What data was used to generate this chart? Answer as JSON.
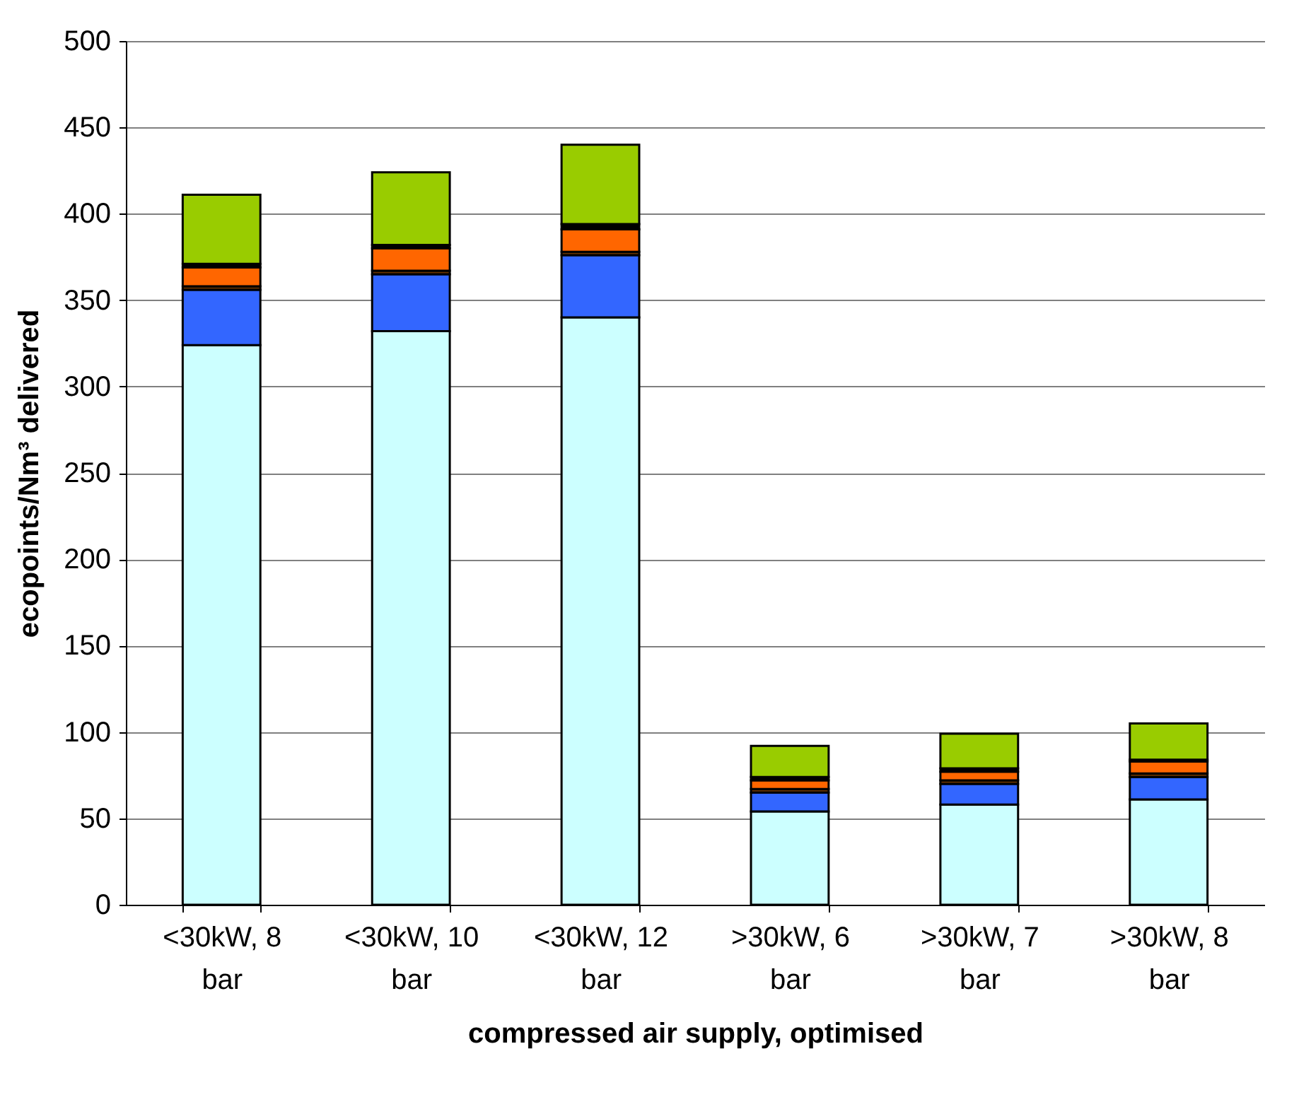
{
  "chart_data": {
    "type": "bar",
    "stacked": true,
    "xlabel": "compressed air supply, optimised",
    "ylabel": "ecopoints/Nm³ delivered",
    "categories": [
      "<30kW, 8 bar",
      "<30kW, 10 bar",
      "<30kW, 12 bar",
      ">30kW, 6 bar",
      ">30kW, 7 bar",
      ">30kW, 8 bar"
    ],
    "series": [
      {
        "color": "#ccffff",
        "values": [
          324,
          332,
          340,
          54,
          58,
          61
        ]
      },
      {
        "color": "#3366ff",
        "values": [
          32,
          33,
          36,
          11,
          12,
          13
        ]
      },
      {
        "color": "#663300",
        "values": [
          2,
          2,
          2,
          2,
          2,
          2
        ]
      },
      {
        "color": "#ff6600",
        "values": [
          11,
          13,
          13,
          5,
          5,
          7
        ]
      },
      {
        "color": "#000000",
        "values": [
          2,
          2,
          3,
          2,
          2,
          1
        ]
      },
      {
        "color": "#99cc00",
        "values": [
          40,
          42,
          46,
          18,
          20,
          21
        ]
      }
    ],
    "ylim": [
      0,
      500
    ],
    "yticks": [
      0,
      50,
      100,
      150,
      200,
      250,
      300,
      350,
      400,
      450,
      500
    ],
    "grid": "y"
  }
}
